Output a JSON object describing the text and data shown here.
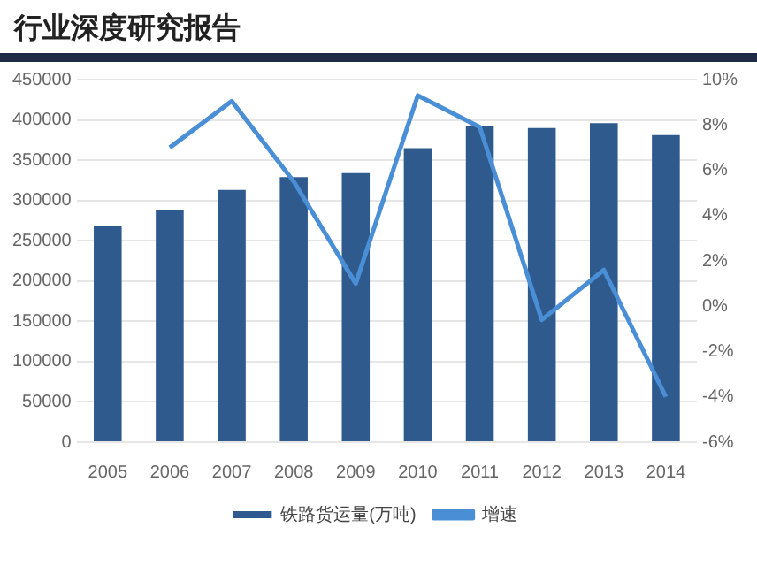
{
  "chart_data": {
    "type": "bar",
    "title": "行业深度研究报告",
    "categories": [
      "2005",
      "2006",
      "2007",
      "2008",
      "2009",
      "2010",
      "2011",
      "2012",
      "2013",
      "2014"
    ],
    "series": [
      {
        "name": "铁路货运量(万吨)",
        "color": "#2e5a8e",
        "values": [
          269000,
          288000,
          313000,
          329000,
          334000,
          365000,
          393000,
          390000,
          396000,
          381000
        ]
      },
      {
        "name": "增速",
        "type": "line",
        "axis": "y2",
        "color": "#4a8fd6",
        "values": [
          null,
          7.0,
          9.05,
          5.5,
          1.0,
          9.3,
          7.9,
          -0.6,
          1.6,
          -4.0
        ]
      }
    ],
    "ylim": [
      0,
      450000
    ],
    "yticks": [
      0,
      50000,
      100000,
      150000,
      200000,
      250000,
      300000,
      350000,
      400000,
      450000
    ],
    "y2lim": [
      -6,
      10
    ],
    "y2ticks": [
      {
        "value": -6,
        "label": "-6%"
      },
      {
        "value": -4,
        "label": "-4%"
      },
      {
        "value": -2,
        "label": "-2%"
      },
      {
        "value": 0,
        "label": "0%"
      },
      {
        "value": 2,
        "label": "2%"
      },
      {
        "value": 4,
        "label": "4%"
      },
      {
        "value": 6,
        "label": "6%"
      },
      {
        "value": 8,
        "label": "8%"
      },
      {
        "value": 10,
        "label": "10%"
      }
    ],
    "grid": "y",
    "legend": "bottom",
    "marker": "none",
    "line_style": "solid"
  }
}
